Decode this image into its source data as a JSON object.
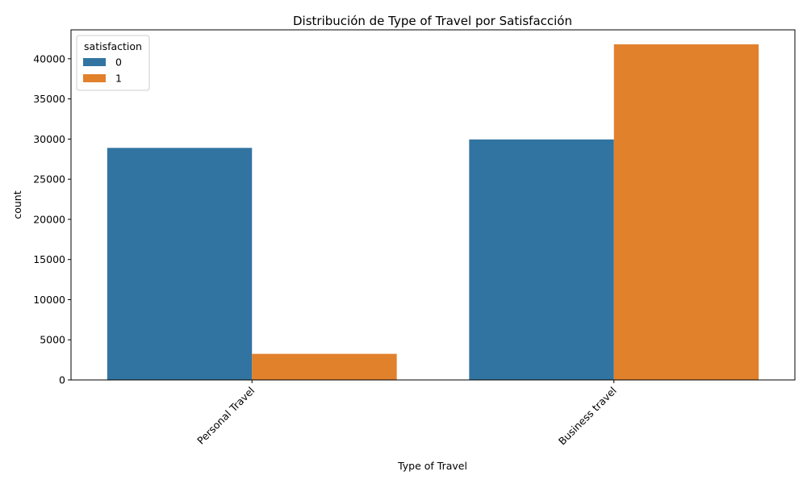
{
  "chart_data": {
    "type": "bar",
    "title": "Distribución de Type of Travel por Satisfacción",
    "xlabel": "Type of Travel",
    "ylabel": "count",
    "categories": [
      "Personal Travel",
      "Business travel"
    ],
    "series": [
      {
        "name": "0",
        "color": "#3274a1",
        "values": [
          28900,
          29950
        ]
      },
      {
        "name": "1",
        "color": "#e1812c",
        "values": [
          3250,
          41800
        ]
      }
    ],
    "ylim": [
      0,
      43600
    ],
    "yticks": [
      0,
      5000,
      10000,
      15000,
      20000,
      25000,
      30000,
      35000,
      40000
    ],
    "legend": {
      "title": "satisfaction",
      "position": "top-left"
    },
    "grid": false
  }
}
